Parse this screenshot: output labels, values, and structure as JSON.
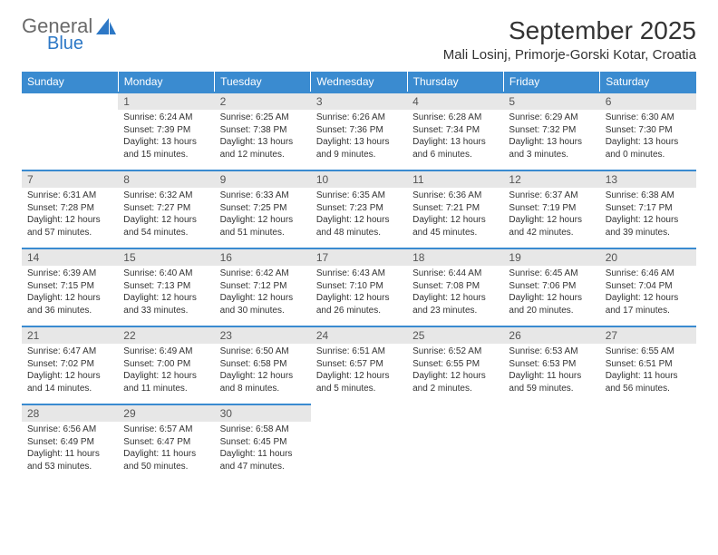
{
  "logo": {
    "word1": "General",
    "word2": "Blue"
  },
  "title": "September 2025",
  "location": "Mali Losinj, Primorje-Gorski Kotar, Croatia",
  "colors": {
    "header_bg": "#3a8bd0",
    "header_text": "#ffffff",
    "daynum_bg": "#e7e7e7",
    "body_bg": "#ffffff",
    "text": "#333333",
    "logo_gray": "#6a6a6a",
    "logo_blue": "#2d78c6"
  },
  "weekdays": [
    "Sunday",
    "Monday",
    "Tuesday",
    "Wednesday",
    "Thursday",
    "Friday",
    "Saturday"
  ],
  "weeks": [
    [
      null,
      {
        "n": "1",
        "sunrise": "6:24 AM",
        "sunset": "7:39 PM",
        "daylight": "13 hours and 15 minutes."
      },
      {
        "n": "2",
        "sunrise": "6:25 AM",
        "sunset": "7:38 PM",
        "daylight": "13 hours and 12 minutes."
      },
      {
        "n": "3",
        "sunrise": "6:26 AM",
        "sunset": "7:36 PM",
        "daylight": "13 hours and 9 minutes."
      },
      {
        "n": "4",
        "sunrise": "6:28 AM",
        "sunset": "7:34 PM",
        "daylight": "13 hours and 6 minutes."
      },
      {
        "n": "5",
        "sunrise": "6:29 AM",
        "sunset": "7:32 PM",
        "daylight": "13 hours and 3 minutes."
      },
      {
        "n": "6",
        "sunrise": "6:30 AM",
        "sunset": "7:30 PM",
        "daylight": "13 hours and 0 minutes."
      }
    ],
    [
      {
        "n": "7",
        "sunrise": "6:31 AM",
        "sunset": "7:28 PM",
        "daylight": "12 hours and 57 minutes."
      },
      {
        "n": "8",
        "sunrise": "6:32 AM",
        "sunset": "7:27 PM",
        "daylight": "12 hours and 54 minutes."
      },
      {
        "n": "9",
        "sunrise": "6:33 AM",
        "sunset": "7:25 PM",
        "daylight": "12 hours and 51 minutes."
      },
      {
        "n": "10",
        "sunrise": "6:35 AM",
        "sunset": "7:23 PM",
        "daylight": "12 hours and 48 minutes."
      },
      {
        "n": "11",
        "sunrise": "6:36 AM",
        "sunset": "7:21 PM",
        "daylight": "12 hours and 45 minutes."
      },
      {
        "n": "12",
        "sunrise": "6:37 AM",
        "sunset": "7:19 PM",
        "daylight": "12 hours and 42 minutes."
      },
      {
        "n": "13",
        "sunrise": "6:38 AM",
        "sunset": "7:17 PM",
        "daylight": "12 hours and 39 minutes."
      }
    ],
    [
      {
        "n": "14",
        "sunrise": "6:39 AM",
        "sunset": "7:15 PM",
        "daylight": "12 hours and 36 minutes."
      },
      {
        "n": "15",
        "sunrise": "6:40 AM",
        "sunset": "7:13 PM",
        "daylight": "12 hours and 33 minutes."
      },
      {
        "n": "16",
        "sunrise": "6:42 AM",
        "sunset": "7:12 PM",
        "daylight": "12 hours and 30 minutes."
      },
      {
        "n": "17",
        "sunrise": "6:43 AM",
        "sunset": "7:10 PM",
        "daylight": "12 hours and 26 minutes."
      },
      {
        "n": "18",
        "sunrise": "6:44 AM",
        "sunset": "7:08 PM",
        "daylight": "12 hours and 23 minutes."
      },
      {
        "n": "19",
        "sunrise": "6:45 AM",
        "sunset": "7:06 PM",
        "daylight": "12 hours and 20 minutes."
      },
      {
        "n": "20",
        "sunrise": "6:46 AM",
        "sunset": "7:04 PM",
        "daylight": "12 hours and 17 minutes."
      }
    ],
    [
      {
        "n": "21",
        "sunrise": "6:47 AM",
        "sunset": "7:02 PM",
        "daylight": "12 hours and 14 minutes."
      },
      {
        "n": "22",
        "sunrise": "6:49 AM",
        "sunset": "7:00 PM",
        "daylight": "12 hours and 11 minutes."
      },
      {
        "n": "23",
        "sunrise": "6:50 AM",
        "sunset": "6:58 PM",
        "daylight": "12 hours and 8 minutes."
      },
      {
        "n": "24",
        "sunrise": "6:51 AM",
        "sunset": "6:57 PM",
        "daylight": "12 hours and 5 minutes."
      },
      {
        "n": "25",
        "sunrise": "6:52 AM",
        "sunset": "6:55 PM",
        "daylight": "12 hours and 2 minutes."
      },
      {
        "n": "26",
        "sunrise": "6:53 AM",
        "sunset": "6:53 PM",
        "daylight": "11 hours and 59 minutes."
      },
      {
        "n": "27",
        "sunrise": "6:55 AM",
        "sunset": "6:51 PM",
        "daylight": "11 hours and 56 minutes."
      }
    ],
    [
      {
        "n": "28",
        "sunrise": "6:56 AM",
        "sunset": "6:49 PM",
        "daylight": "11 hours and 53 minutes."
      },
      {
        "n": "29",
        "sunrise": "6:57 AM",
        "sunset": "6:47 PM",
        "daylight": "11 hours and 50 minutes."
      },
      {
        "n": "30",
        "sunrise": "6:58 AM",
        "sunset": "6:45 PM",
        "daylight": "11 hours and 47 minutes."
      },
      null,
      null,
      null,
      null
    ]
  ],
  "labels": {
    "sunrise": "Sunrise:",
    "sunset": "Sunset:",
    "daylight": "Daylight:"
  }
}
